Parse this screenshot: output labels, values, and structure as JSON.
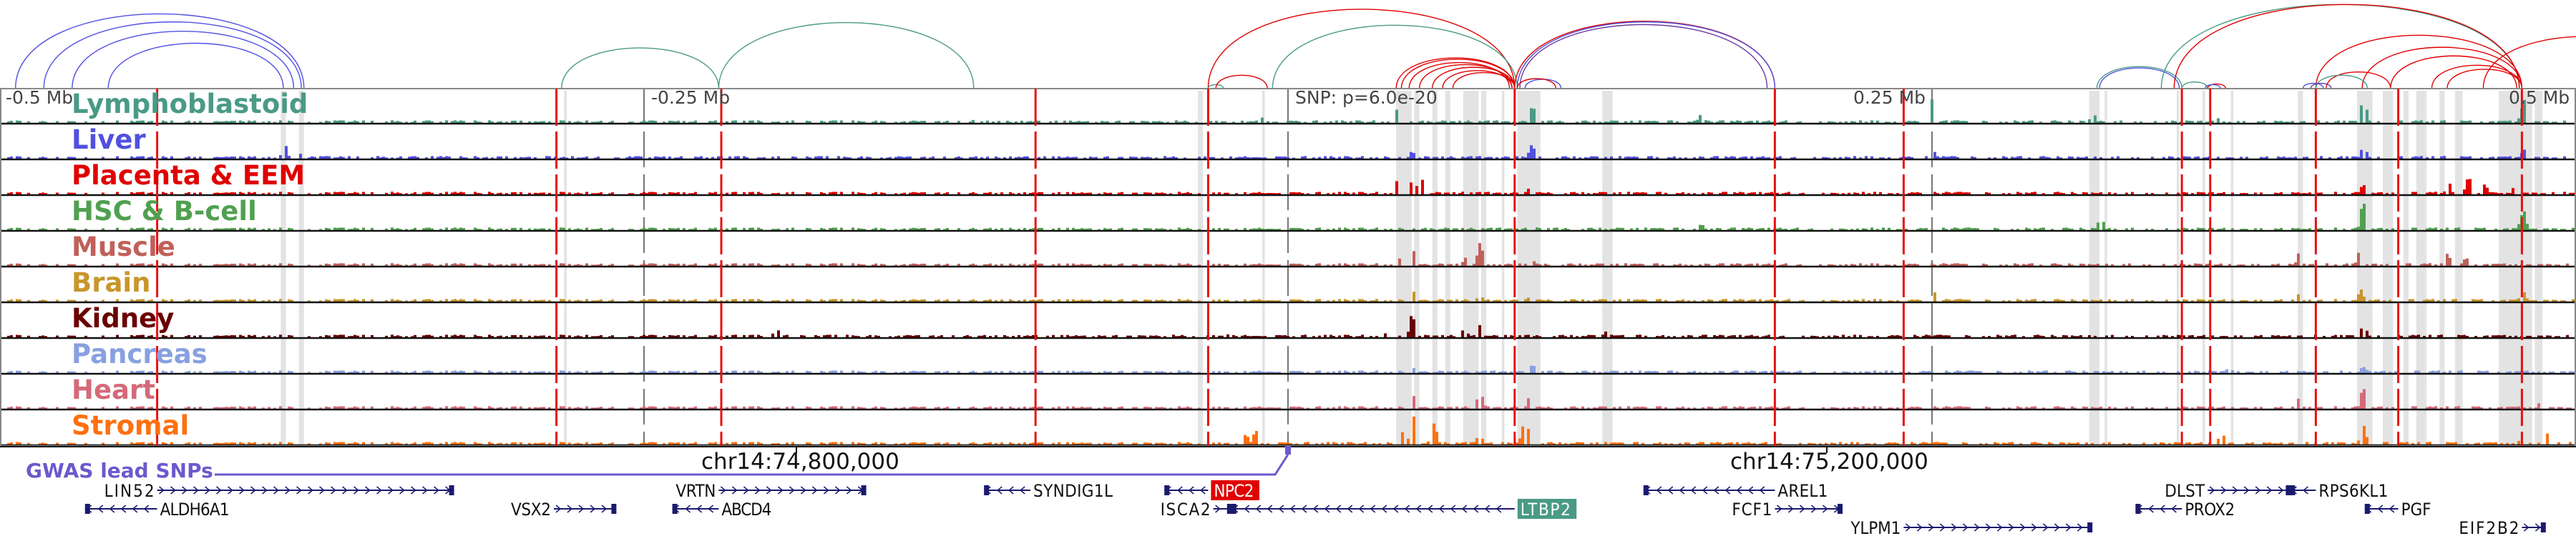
{
  "axis": {
    "left_label": "-0.5 Mb",
    "left_mid_label": "-0.25 Mb",
    "right_mid_label": "0.25 Mb",
    "right_label": "0.5 Mb",
    "coord_left": "chr14:74,800,000",
    "coord_right": "chr14:75,200,000",
    "snp_label": "SNP: p=6.0e-20",
    "gwas_label": "GWAS lead SNPs",
    "gwas_color": "#6a5acd"
  },
  "tracks": [
    {
      "name": "Lymphoblastoid",
      "color": "#4a9a85",
      "peaks": [
        [
          42,
          0.5
        ],
        [
          94,
          0.7
        ],
        [
          160,
          0.45
        ],
        [
          250,
          0.9
        ],
        [
          312,
          0.35
        ],
        [
          417,
          1.0
        ],
        [
          361,
          0.25
        ],
        [
          479,
          0.9
        ],
        [
          -122,
          0.2
        ],
        [
          -10,
          0.2
        ]
      ]
    },
    {
      "name": "Liver",
      "color": "#5050e0",
      "peaks": [
        [
          94,
          0.55
        ],
        [
          48,
          0.3
        ],
        [
          417,
          0.5
        ],
        [
          250,
          0.3
        ],
        [
          479,
          0.35
        ],
        [
          -390,
          0.5
        ],
        [
          -383,
          0.3
        ]
      ]
    },
    {
      "name": "Placenta & EEM",
      "color": "#e00000",
      "peaks": [
        [
          42,
          0.5
        ],
        [
          48,
          0.75
        ],
        [
          51,
          0.6
        ],
        [
          69,
          0.2
        ],
        [
          94,
          0.35
        ],
        [
          458,
          0.75
        ],
        [
          450,
          0.4
        ],
        [
          464,
          0.4
        ],
        [
          417,
          0.35
        ],
        [
          476,
          0.35
        ]
      ]
    },
    {
      "name": "HSC & B-cell",
      "color": "#50a050",
      "peaks": [
        [
          94,
          0.9
        ],
        [
          160,
          0.25
        ],
        [
          417,
          1.0
        ],
        [
          315,
          0.5
        ],
        [
          250,
          0.9
        ],
        [
          479,
          0.9
        ]
      ]
    },
    {
      "name": "Muscle",
      "color": "#c0605a",
      "peaks": [
        [
          48,
          0.75
        ],
        [
          44,
          0.5
        ],
        [
          69,
          0.5
        ],
        [
          74,
          0.75
        ],
        [
          94,
          0.35
        ],
        [
          416,
          0.75
        ],
        [
          392,
          0.45
        ],
        [
          450,
          0.45
        ],
        [
          457,
          0.35
        ]
      ]
    },
    {
      "name": "Brain",
      "color": "#c8962a",
      "peaks": [
        [
          48,
          0.5
        ],
        [
          74,
          0.25
        ],
        [
          94,
          0.25
        ],
        [
          416,
          0.45
        ],
        [
          392,
          0.25
        ],
        [
          250,
          0.35
        ],
        [
          479,
          0.45
        ]
      ]
    },
    {
      "name": "Kidney",
      "color": "#6a0000",
      "peaks": [
        [
          48,
          0.95
        ],
        [
          39,
          0.55
        ],
        [
          74,
          0.45
        ],
        [
          68,
          0.35
        ],
        [
          123,
          0.3
        ],
        [
          -23,
          0.2
        ],
        [
          428,
          0.6
        ],
        [
          417,
          0.5
        ],
        [
          451,
          0.3
        ],
        [
          -199,
          0.35
        ]
      ]
    },
    {
      "name": "Pancreas",
      "color": "#88a0e0",
      "peaks": [
        [
          94,
          0.35
        ],
        [
          48,
          0.25
        ],
        [
          417,
          0.25
        ],
        [
          365,
          0.25
        ]
      ]
    },
    {
      "name": "Heart",
      "color": "#d46a7a",
      "peaks": [
        [
          48,
          0.65
        ],
        [
          74,
          0.7
        ],
        [
          94,
          0.65
        ],
        [
          417,
          0.75
        ],
        [
          392,
          0.35
        ],
        [
          457,
          0.35
        ],
        [
          486,
          0.3
        ]
      ]
    },
    {
      "name": "Stromal",
      "color": "#ff7010",
      "peaks": [
        [
          48,
          1.0
        ],
        [
          44,
          0.6
        ],
        [
          56,
          0.8
        ],
        [
          94,
          0.95
        ],
        [
          91,
          0.7
        ],
        [
          -13,
          0.55
        ],
        [
          -17,
          0.45
        ],
        [
          74,
          0.45
        ],
        [
          417,
          0.8
        ],
        [
          362,
          0.55
        ],
        [
          479,
          0.5
        ],
        [
          488,
          0.4
        ]
      ]
    }
  ],
  "variant_lines_kb": [
    -439,
    -284,
    -220,
    -98,
    -31,
    88,
    189,
    239,
    347,
    358,
    399,
    431,
    479
  ],
  "highlight_bands_kb": [
    [
      -391,
      -389
    ],
    [
      -384,
      -382
    ],
    [
      -281,
      -280
    ],
    [
      -35,
      -33
    ],
    [
      -10,
      -9
    ],
    [
      42,
      48
    ],
    [
      49,
      51
    ],
    [
      56,
      58
    ],
    [
      61,
      63
    ],
    [
      68,
      74
    ],
    [
      75,
      77
    ],
    [
      83,
      84
    ],
    [
      89,
      98
    ],
    [
      122,
      126
    ],
    [
      311,
      315
    ],
    [
      317,
      318
    ],
    [
      345,
      346
    ],
    [
      355,
      356
    ],
    [
      366,
      367
    ],
    [
      392,
      394
    ],
    [
      415,
      421
    ],
    [
      425,
      429
    ],
    [
      433,
      435
    ],
    [
      438,
      442
    ],
    [
      447,
      449
    ],
    [
      453,
      456
    ],
    [
      470,
      483
    ],
    [
      484,
      487
    ]
  ],
  "grey_lines_kb": [
    -250,
    0,
    250
  ],
  "arcs": [
    {
      "s": -494,
      "e": -382,
      "c": "#5050e0"
    },
    {
      "s": -483,
      "e": -383,
      "c": "#5050e0"
    },
    {
      "s": -472,
      "e": -386,
      "c": "#5050e0"
    },
    {
      "s": -458,
      "e": -390,
      "c": "#5050e0"
    },
    {
      "s": -282,
      "e": -221,
      "c": "#4a9a85"
    },
    {
      "s": -221,
      "e": -122,
      "c": "#4a9a85"
    },
    {
      "s": -31,
      "e": 88,
      "c": "#e00000"
    },
    {
      "s": -6,
      "e": 89,
      "c": "#4a9a85"
    },
    {
      "s": 42,
      "e": 88,
      "c": "#e00000"
    },
    {
      "s": 44,
      "e": 88,
      "c": "#e00000"
    },
    {
      "s": 47,
      "e": 86,
      "c": "#e00000"
    },
    {
      "s": 51,
      "e": 87,
      "c": "#e00000"
    },
    {
      "s": 56,
      "e": 88,
      "c": "#e00000"
    },
    {
      "s": 60,
      "e": 87,
      "c": "#e00000"
    },
    {
      "s": 64,
      "e": 88,
      "c": "#e00000"
    },
    {
      "s": -31,
      "e": -25,
      "c": "#4a9a85"
    },
    {
      "s": -28,
      "e": -8,
      "c": "#e00000"
    },
    {
      "s": 88,
      "e": 189,
      "c": "#e00000"
    },
    {
      "s": 89,
      "e": 189,
      "c": "#5050e0"
    },
    {
      "s": 90,
      "e": 186,
      "c": "#6a3aa0"
    },
    {
      "s": 92,
      "e": 106,
      "c": "#5050e0"
    },
    {
      "s": 89,
      "e": 104,
      "c": "#e00000"
    },
    {
      "s": 314,
      "e": 347,
      "c": "#4a9a85"
    },
    {
      "s": 315,
      "e": 346,
      "c": "#5050e0"
    },
    {
      "s": 347,
      "e": 357,
      "c": "#4a9a85"
    },
    {
      "s": 357,
      "e": 364,
      "c": "#e00000"
    },
    {
      "s": 356,
      "e": 362,
      "c": "#5050e0"
    },
    {
      "s": 339,
      "e": 478,
      "c": "#4a9a85"
    },
    {
      "s": 344,
      "e": 478,
      "c": "#e00000"
    },
    {
      "s": 399,
      "e": 479,
      "c": "#e00000"
    },
    {
      "s": 417,
      "e": 479,
      "c": "#e00000"
    },
    {
      "s": 428,
      "e": 477,
      "c": "#e00000"
    },
    {
      "s": 444,
      "e": 479,
      "c": "#e00000"
    },
    {
      "s": 450,
      "e": 479,
      "c": "#e00000"
    },
    {
      "s": 403,
      "e": 428,
      "c": "#e00000"
    },
    {
      "s": 399,
      "e": 419,
      "c": "#4a9a85"
    },
    {
      "s": 397,
      "e": 405,
      "c": "#6a3aa0"
    },
    {
      "s": 394,
      "e": 402,
      "c": "#5050e0"
    },
    {
      "s": 464,
      "e": 542,
      "c": "#e00000"
    }
  ],
  "genes": [
    {
      "name": "LIN52",
      "s": -439,
      "e": -324,
      "strand": "+",
      "row": 0,
      "label": "left"
    },
    {
      "name": "VRTN",
      "s": -221,
      "e": -164,
      "strand": "+",
      "row": 0,
      "label": "left"
    },
    {
      "name": "SYNDIG1L",
      "s": -118,
      "e": -100,
      "strand": "-",
      "row": 0,
      "label": "right"
    },
    {
      "name": "NPC2",
      "s": -48,
      "e": -31,
      "strand": "-",
      "row": 0,
      "label": "right",
      "highlight": "#e00000"
    },
    {
      "name": "AREL1",
      "s": 138,
      "e": 189,
      "strand": "-",
      "row": 0,
      "label": "right"
    },
    {
      "name": "DLST",
      "s": 357,
      "e": 389,
      "strand": "+",
      "row": 0,
      "label": "left"
    },
    {
      "name": "RPS6KL1",
      "s": 389,
      "e": 399,
      "strand": "-",
      "row": 0,
      "label": "right"
    },
    {
      "name": "ALDH6A1",
      "s": -467,
      "e": -439,
      "strand": "-",
      "row": 1,
      "label": "right"
    },
    {
      "name": "VSX2",
      "s": -285,
      "e": -261,
      "strand": "+",
      "row": 1,
      "label": "left"
    },
    {
      "name": "ABCD4",
      "s": -239,
      "e": -221,
      "strand": "-",
      "row": 1,
      "label": "right"
    },
    {
      "name": "ISCA2",
      "s": -29,
      "e": -22,
      "strand": "+",
      "row": 1,
      "label": "left"
    },
    {
      "name": "LTBP2",
      "s": -22,
      "e": 88,
      "strand": "-",
      "row": 1,
      "label": "right",
      "highlight": "#4a9a85"
    },
    {
      "name": "FCF1",
      "s": 189,
      "e": 215,
      "strand": "+",
      "row": 1,
      "label": "left"
    },
    {
      "name": "PROX2",
      "s": 329,
      "e": 347,
      "strand": "-",
      "row": 1,
      "label": "right"
    },
    {
      "name": "PGF",
      "s": 418,
      "e": 431,
      "strand": "-",
      "row": 1,
      "label": "right"
    },
    {
      "name": "YLPM1",
      "s": 239,
      "e": 312,
      "strand": "+",
      "row": 2,
      "label": "left"
    },
    {
      "name": "EIF2B2",
      "s": 479,
      "e": 488,
      "strand": "+",
      "row": 2,
      "label": "left"
    }
  ]
}
